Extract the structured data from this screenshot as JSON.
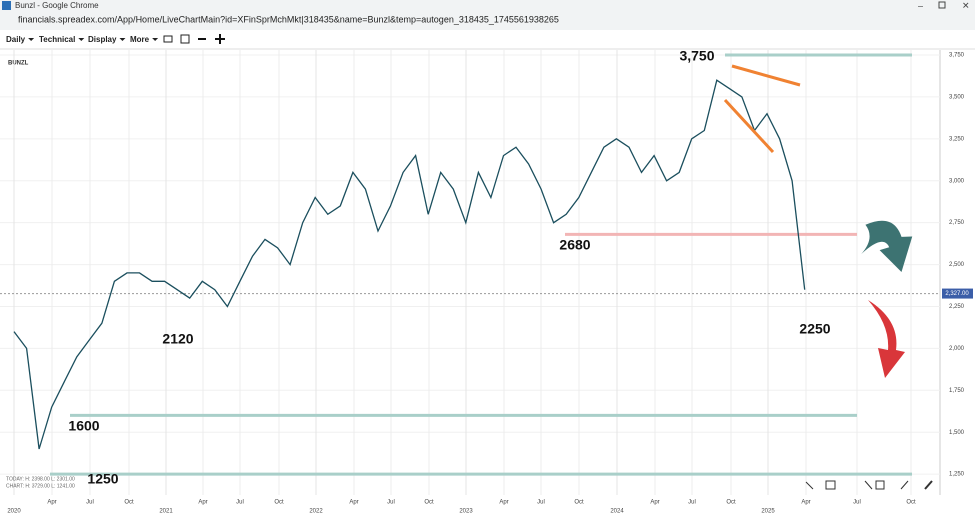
{
  "window": {
    "title": "Bunzl - Google Chrome",
    "url": "financials.spreadex.com/App/Home/LiveChartMain?id=XFinSprMchMkt|318435&name=Bunzl&temp=autogen_318435_1745561938265"
  },
  "toolbar": {
    "menus": [
      "Daily",
      "Technical",
      "Display",
      "More"
    ]
  },
  "info": {
    "today": "TODAY:  H: 2398.00  L: 2301.00",
    "chart": "CHART:  H: 3729.00  L: 1241.00"
  },
  "chart_data": {
    "type": "line",
    "title": "BUNZL",
    "x": [
      "2020-01",
      "2020-02",
      "2020-03",
      "2020-04",
      "2020-05",
      "2020-06",
      "2020-07",
      "2020-08",
      "2020-09",
      "2020-10",
      "2020-11",
      "2020-12",
      "2021-01",
      "2021-02",
      "2021-03",
      "2021-04",
      "2021-05",
      "2021-06",
      "2021-07",
      "2021-08",
      "2021-09",
      "2021-10",
      "2021-11",
      "2021-12",
      "2022-01",
      "2022-02",
      "2022-03",
      "2022-04",
      "2022-05",
      "2022-06",
      "2022-07",
      "2022-08",
      "2022-09",
      "2022-10",
      "2022-11",
      "2022-12",
      "2023-01",
      "2023-02",
      "2023-03",
      "2023-04",
      "2023-05",
      "2023-06",
      "2023-07",
      "2023-08",
      "2023-09",
      "2023-10",
      "2023-11",
      "2023-12",
      "2024-01",
      "2024-02",
      "2024-03",
      "2024-04",
      "2024-05",
      "2024-06",
      "2024-07",
      "2024-08",
      "2024-09",
      "2024-10",
      "2024-11",
      "2024-12",
      "2025-01",
      "2025-02",
      "2025-03",
      "2025-04"
    ],
    "series": [
      {
        "name": "BUNZL",
        "color": "#1b4f5e",
        "values": [
          2100,
          2000,
          1400,
          1650,
          1800,
          1950,
          2050,
          2150,
          2400,
          2450,
          2450,
          2400,
          2400,
          2350,
          2300,
          2400,
          2350,
          2250,
          2400,
          2550,
          2650,
          2600,
          2500,
          2750,
          2900,
          2800,
          2850,
          3050,
          2950,
          2700,
          2850,
          3050,
          3150,
          2800,
          3050,
          2950,
          2750,
          3050,
          2900,
          3150,
          3200,
          3100,
          2950,
          2750,
          2800,
          2900,
          3050,
          3200,
          3250,
          3200,
          3050,
          3150,
          3000,
          3050,
          3250,
          3300,
          3600,
          3550,
          3500,
          3300,
          3400,
          3250,
          3000,
          2350
        ]
      }
    ],
    "ylim": [
      1185,
      3780
    ],
    "yticks": [
      {
        "value": 3750,
        "label": "3,750"
      },
      {
        "value": 3500,
        "label": "3,500"
      },
      {
        "value": 3250,
        "label": "3,250"
      },
      {
        "value": 3000,
        "label": "3,000"
      },
      {
        "value": 2750,
        "label": "2,750"
      },
      {
        "value": 2500,
        "label": "2,500"
      },
      {
        "value": 2250,
        "label": "2,250"
      },
      {
        "value": 2000,
        "label": "2,000"
      },
      {
        "value": 1750,
        "label": "1,750"
      },
      {
        "value": 1500,
        "label": "1,500"
      },
      {
        "value": 1250,
        "label": "1,250"
      }
    ],
    "month_ticks": [
      "Apr",
      "Jul",
      "Oct",
      "Apr",
      "Jul",
      "Oct",
      "Apr",
      "Jul",
      "Oct",
      "Apr",
      "Jul",
      "Oct",
      "Apr",
      "Jul",
      "Oct",
      "Apr",
      "Jul",
      "Oct"
    ],
    "year_ticks": [
      2020,
      2021,
      2022,
      2023,
      2024,
      2025
    ],
    "levels": [
      {
        "value": 3750,
        "label": "3,750",
        "color": "#a9cfc9"
      },
      {
        "value": 2680,
        "label": "2680",
        "color": "#f2b5b5"
      },
      {
        "value": 1600,
        "label": "1600",
        "color": "#a9cfc9"
      },
      {
        "value": 1250,
        "label": "1250",
        "color": "#a9cfc9"
      }
    ],
    "annotations": [
      "2120",
      "2250"
    ],
    "last_price": {
      "value": 2327,
      "label": "2,327.00"
    },
    "grid": true
  }
}
